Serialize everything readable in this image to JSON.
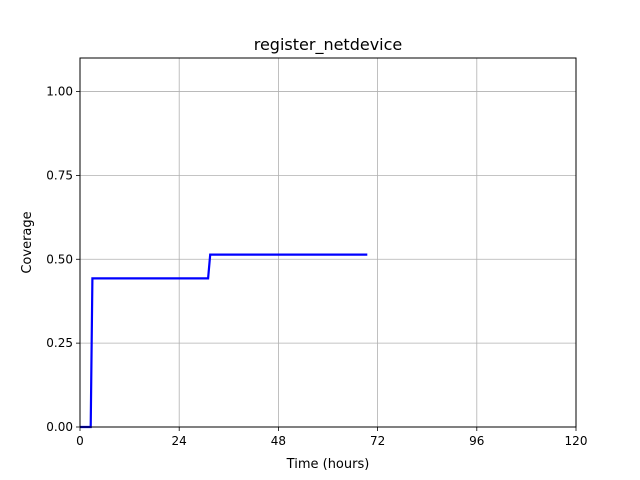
{
  "chart_data": {
    "type": "line",
    "title": "register_netdevice",
    "xlabel": "Time (hours)",
    "ylabel": "Coverage",
    "xlim": [
      0,
      120
    ],
    "ylim": [
      0,
      1.1
    ],
    "xticks": [
      0,
      24,
      48,
      72,
      96,
      120
    ],
    "yticks": [
      0.0,
      0.25,
      0.5,
      0.75,
      1.0
    ],
    "xtick_labels": [
      "0",
      "24",
      "48",
      "72",
      "96",
      "120"
    ],
    "ytick_labels": [
      "0.00",
      "0.25",
      "0.50",
      "0.75",
      "1.00"
    ],
    "grid": true,
    "series": [
      {
        "color": "#0000ff",
        "x": [
          0,
          2.6,
          3.0,
          31.0,
          31.5,
          69.5
        ],
        "y": [
          0.0,
          0.0,
          0.443,
          0.443,
          0.514,
          0.514
        ]
      }
    ]
  }
}
